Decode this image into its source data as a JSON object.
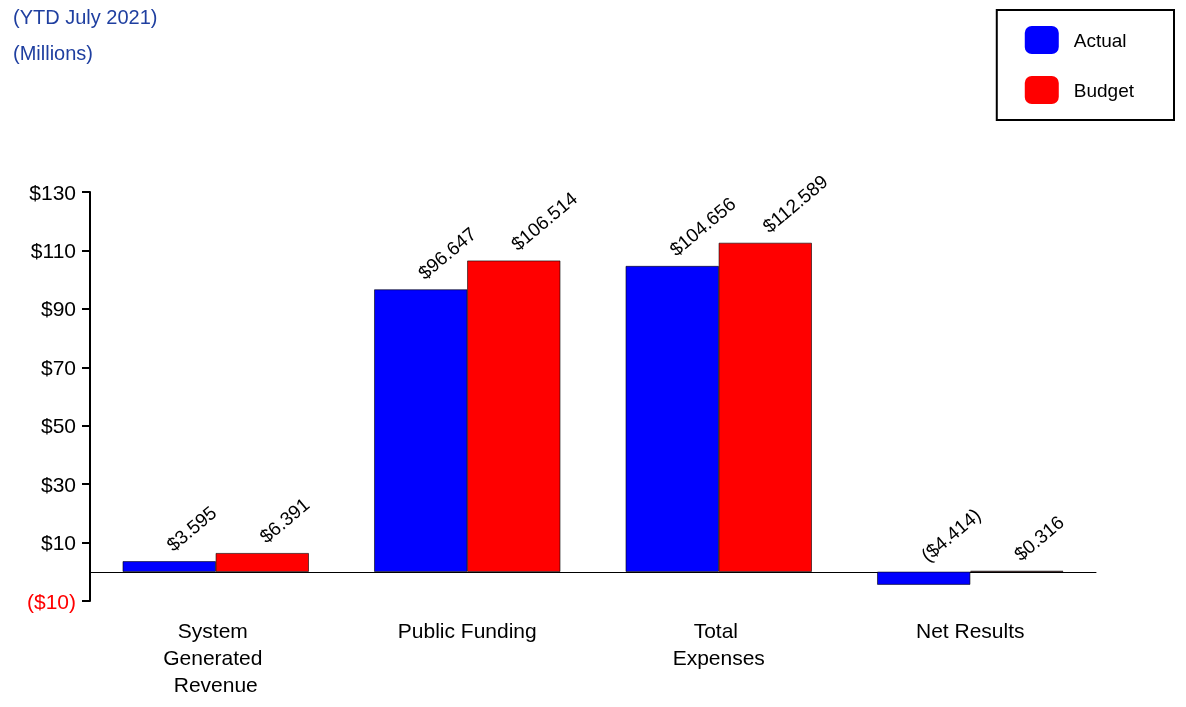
{
  "chart_data": {
    "type": "bar",
    "title": "(YTD July 2021)",
    "subtitle": "(Millions)",
    "categories": [
      "System Generated Revenue",
      "Public Funding",
      "Total Expenses",
      "Net Results"
    ],
    "series": [
      {
        "name": "Actual",
        "color": "#0000ff",
        "values": [
          3.595,
          96.647,
          104.656,
          -4.414
        ],
        "value_labels": [
          "$3.595",
          "$96.647",
          "$104.656",
          "($4.414)"
        ]
      },
      {
        "name": "Budget",
        "color": "#ff0000",
        "values": [
          6.391,
          106.514,
          112.589,
          0.316
        ],
        "value_labels": [
          "$6.391",
          "$106.514",
          "$112.589",
          "$0.316"
        ]
      }
    ],
    "ylim": [
      -10,
      130
    ],
    "yticks": [
      {
        "value": -10,
        "label": "($10)"
      },
      {
        "value": 10,
        "label": "$10"
      },
      {
        "value": 30,
        "label": "$30"
      },
      {
        "value": 50,
        "label": "$50"
      },
      {
        "value": 70,
        "label": "$70"
      },
      {
        "value": 90,
        "label": "$90"
      },
      {
        "value": 110,
        "label": "$110"
      },
      {
        "value": 130,
        "label": "$130"
      }
    ],
    "grid": false,
    "legend": "top right"
  }
}
